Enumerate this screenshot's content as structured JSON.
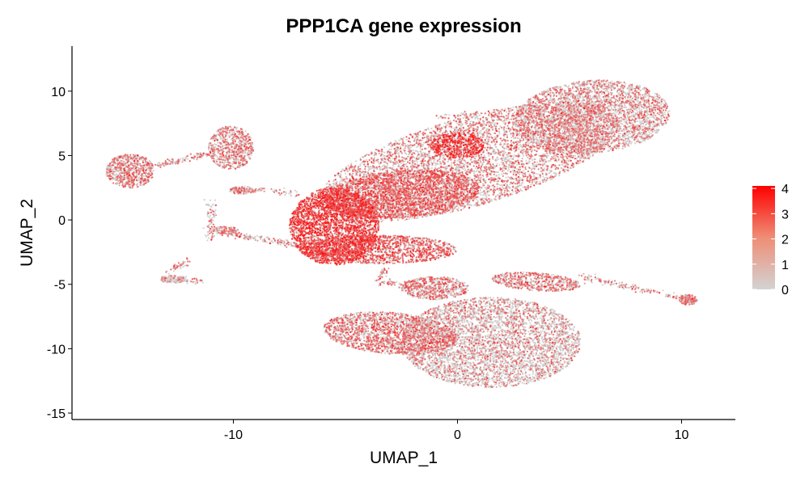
{
  "chart_data": {
    "type": "scatter",
    "title": "PPP1CA gene expression",
    "xlabel": "UMAP_1",
    "ylabel": "UMAP_2",
    "xlim": [
      -17.2,
      12.4
    ],
    "ylim": [
      -15.5,
      13.5
    ],
    "x_ticks": [
      -10,
      0,
      10
    ],
    "x_tick_labels": [
      "-10",
      "0",
      "10"
    ],
    "y_ticks": [
      -15,
      -10,
      -5,
      0,
      5,
      10
    ],
    "y_tick_labels": [
      "-15",
      "-10",
      "-5",
      "0",
      "5",
      "10"
    ],
    "grid": false,
    "colors": {
      "low": "#d3d3d3",
      "high": "#ff0000"
    },
    "legend": {
      "position": "right",
      "min": 0,
      "max": 4.1,
      "ticks": [
        0,
        1,
        2,
        3,
        4
      ],
      "tick_labels": [
        "0",
        "1",
        "2",
        "3",
        "4"
      ]
    },
    "clusters": [
      {
        "cx": 0.5,
        "cy": 4.5,
        "rx": 7.5,
        "ry": 3.2,
        "rot": 30,
        "n": 6000,
        "expr": 0.9
      },
      {
        "cx": 6.0,
        "cy": 8.0,
        "rx": 3.5,
        "ry": 2.8,
        "rot": 15,
        "n": 3500,
        "expr": 0.7
      },
      {
        "cx": -2.5,
        "cy": 2.0,
        "rx": 3.5,
        "ry": 1.8,
        "rot": 10,
        "n": 2500,
        "expr": 1.4
      },
      {
        "cx": -5.5,
        "cy": -0.5,
        "rx": 2.0,
        "ry": 3.0,
        "rot": 0,
        "n": 3000,
        "expr": 1.9
      },
      {
        "cx": -3.5,
        "cy": -2.3,
        "rx": 3.5,
        "ry": 1.1,
        "rot": 0,
        "n": 1500,
        "expr": 1.4
      },
      {
        "cx": 0.0,
        "cy": 5.8,
        "rx": 1.2,
        "ry": 1.0,
        "rot": 0,
        "n": 500,
        "expr": 2.0
      },
      {
        "cx": -14.6,
        "cy": 3.8,
        "rx": 1.1,
        "ry": 1.3,
        "rot": 0,
        "n": 700,
        "expr": 1.0
      },
      {
        "cx": -10.1,
        "cy": 5.6,
        "rx": 1.0,
        "ry": 1.7,
        "rot": 0,
        "n": 700,
        "expr": 0.9
      },
      {
        "cx": 1.5,
        "cy": -9.5,
        "rx": 4.0,
        "ry": 3.5,
        "rot": 0,
        "n": 4500,
        "expr": 0.5
      },
      {
        "cx": -3.0,
        "cy": -8.8,
        "rx": 3.0,
        "ry": 1.6,
        "rot": -10,
        "n": 2000,
        "expr": 1.1
      },
      {
        "cx": -1.0,
        "cy": -5.3,
        "rx": 1.5,
        "ry": 0.9,
        "rot": 0,
        "n": 600,
        "expr": 1.0
      },
      {
        "cx": 3.5,
        "cy": -4.8,
        "rx": 2.0,
        "ry": 0.7,
        "rot": -8,
        "n": 600,
        "expr": 1.0
      },
      {
        "cx": 10.3,
        "cy": -6.2,
        "rx": 0.4,
        "ry": 0.4,
        "rot": 0,
        "n": 150,
        "expr": 0.9
      },
      {
        "cx": -12.7,
        "cy": -4.6,
        "rx": 0.6,
        "ry": 0.3,
        "rot": 0,
        "n": 150,
        "expr": 0.3
      },
      {
        "cx": -9.6,
        "cy": 2.3,
        "rx": 0.6,
        "ry": 0.3,
        "rot": 0,
        "n": 120,
        "expr": 0.9
      },
      {
        "cx": -10.4,
        "cy": -0.8,
        "rx": 0.6,
        "ry": 0.3,
        "rot": 0,
        "n": 120,
        "expr": 0.7
      }
    ],
    "bridges": [
      {
        "from": [
          -13.5,
          4.2
        ],
        "to": [
          -11.0,
          5.2
        ],
        "n": 120
      },
      {
        "from": [
          -11.0,
          1.5
        ],
        "to": [
          -11.0,
          -1.5
        ],
        "n": 80
      },
      {
        "from": [
          -10.5,
          -1.0
        ],
        "to": [
          -7.0,
          -2.0
        ],
        "n": 150
      },
      {
        "from": [
          -12.9,
          -4.0
        ],
        "to": [
          -12.0,
          -3.2
        ],
        "n": 40
      },
      {
        "from": [
          -12.3,
          -4.7
        ],
        "to": [
          -11.4,
          -4.7
        ],
        "n": 30
      },
      {
        "from": [
          -1.0,
          -5.3
        ],
        "to": [
          -3.5,
          -4.8
        ],
        "n": 80
      },
      {
        "from": [
          5.5,
          -4.4
        ],
        "to": [
          10.0,
          -6.1
        ],
        "n": 160
      },
      {
        "from": [
          -7.0,
          2.0
        ],
        "to": [
          -9.5,
          2.4
        ],
        "n": 60
      },
      {
        "from": [
          -1.0,
          8.0
        ],
        "to": [
          1.0,
          8.2
        ],
        "n": 50
      },
      {
        "from": [
          -3.2,
          -3.8
        ],
        "to": [
          -3.5,
          -4.6
        ],
        "n": 30
      }
    ]
  }
}
